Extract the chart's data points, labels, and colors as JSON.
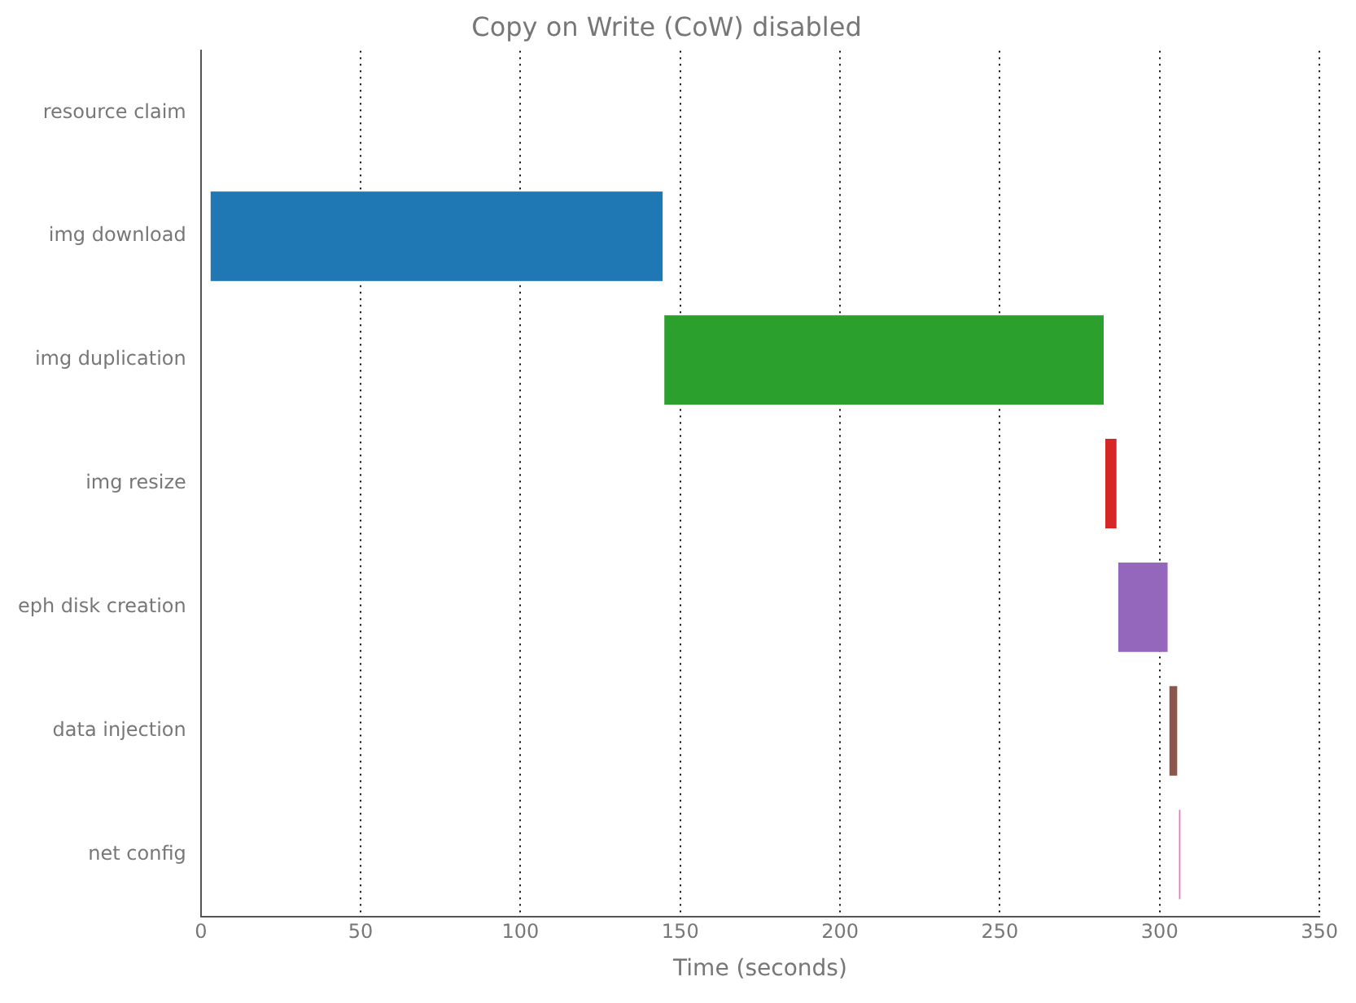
{
  "chart_data": {
    "type": "bar",
    "orientation": "horizontal",
    "title": "Copy on Write (CoW) disabled",
    "xlabel": "Time (seconds)",
    "categories": [
      "resource claim",
      "img download",
      "img duplication",
      "img resize",
      "eph disk creation",
      "data injection",
      "net config"
    ],
    "base": [
      null,
      3,
      145,
      283,
      287,
      303,
      306
    ],
    "values": [
      null,
      142,
      138,
      4,
      16,
      3,
      1
    ],
    "colors": [
      "#1f77b4",
      "#1f77b4",
      "#2ca02c",
      "#d62728",
      "#9467bd",
      "#8c564b",
      "#e377c2"
    ],
    "xlim": [
      0,
      350
    ],
    "xticks": [
      0,
      50,
      100,
      150,
      200,
      250,
      300,
      350
    ],
    "grid": "x",
    "legend": false
  }
}
